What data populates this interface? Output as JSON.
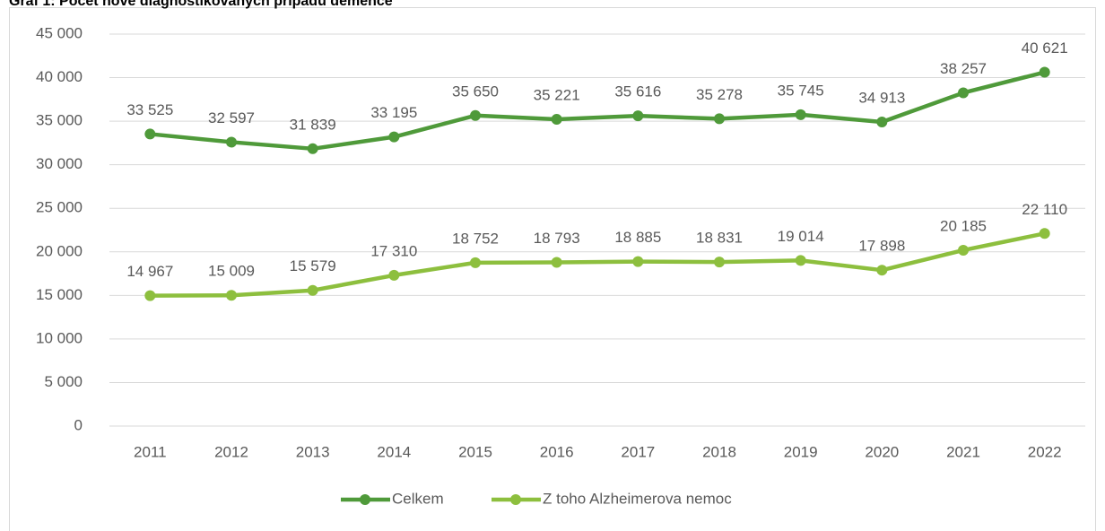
{
  "chart_data": {
    "type": "line",
    "title": "Graf 1: Počet nově diagnostikovaných případů demence",
    "categories": [
      "2011",
      "2012",
      "2013",
      "2014",
      "2015",
      "2016",
      "2017",
      "2018",
      "2019",
      "2020",
      "2021",
      "2022"
    ],
    "series": [
      {
        "name": "Celkem",
        "color": "#4f9a3a",
        "values": [
          33525,
          32597,
          31839,
          33195,
          35650,
          35221,
          35616,
          35278,
          35745,
          34913,
          38257,
          40621
        ],
        "value_labels": [
          "33 525",
          "32 597",
          "31 839",
          "33 195",
          "35 650",
          "35 221",
          "35 616",
          "35 278",
          "35 745",
          "34 913",
          "38 257",
          "40 621"
        ]
      },
      {
        "name": "Z toho Alzheimerova nemoc",
        "color": "#8dbf3e",
        "values": [
          14967,
          15009,
          15579,
          17310,
          18752,
          18793,
          18885,
          18831,
          19014,
          17898,
          20185,
          22110
        ],
        "value_labels": [
          "14 967",
          "15 009",
          "15 579",
          "17 310",
          "18 752",
          "18 793",
          "18 885",
          "18 831",
          "19 014",
          "17 898",
          "20 185",
          "22 110"
        ]
      }
    ],
    "ylim": [
      0,
      45000
    ],
    "yticks": [
      0,
      {
        "value": 5000,
        "label": "5 000"
      },
      {
        "value": 10000,
        "label": "10 000"
      },
      {
        "value": 15000,
        "label": "15 000"
      },
      {
        "value": 20000,
        "label": "20 000"
      },
      {
        "value": 25000,
        "label": "25 000"
      },
      {
        "value": 30000,
        "label": "30 000"
      },
      {
        "value": 35000,
        "label": "35 000"
      },
      {
        "value": 40000,
        "label": "40 000"
      },
      {
        "value": 45000,
        "label": "45 000"
      }
    ],
    "grid": true,
    "legend": "bottom"
  }
}
